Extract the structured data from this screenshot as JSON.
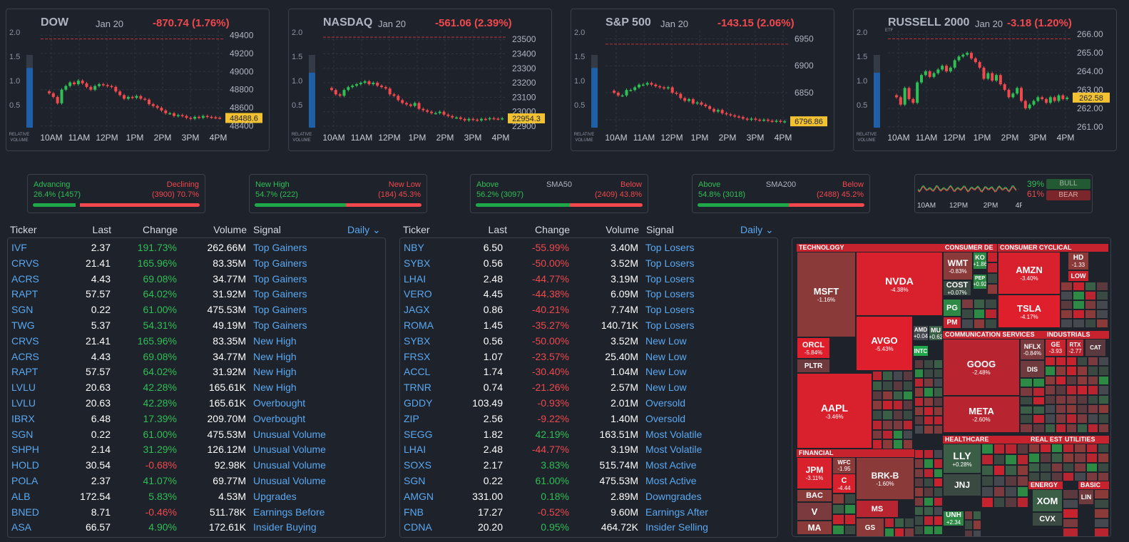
{
  "indices": [
    {
      "name": "DOW",
      "date": "Jan 20",
      "change": "-870.74 (1.76%)",
      "sub": "",
      "last": "48488.6",
      "yticks": [
        "49400",
        "49200",
        "49000",
        "48800",
        "48600",
        "48400"
      ],
      "vol_ticks": [
        "2.0",
        "1.5",
        "1.0",
        "0.5"
      ],
      "xticks": [
        "10AM",
        "11AM",
        "12PM",
        "1PM",
        "2PM",
        "3PM",
        "4PM"
      ],
      "vol_label": [
        "RELATIVE",
        "VOLUME"
      ],
      "rel_volume": 1.25,
      "ylim": [
        48350,
        49450
      ],
      "prev_close": 49359,
      "closes": [
        48760,
        48720,
        48650,
        48800,
        48840,
        48880,
        48860,
        48900,
        48870,
        48830,
        48800,
        48840,
        48860,
        48850,
        48840,
        48830,
        48780,
        48740,
        48700,
        48720,
        48710,
        48730,
        48700,
        48690,
        48640,
        48620,
        48600,
        48570,
        48540,
        48540,
        48510,
        48520,
        48510,
        48490,
        48480,
        48500,
        48490,
        48510,
        48500,
        48495,
        48490,
        48488
      ]
    },
    {
      "name": "NASDAQ",
      "date": "Jan 20",
      "change": "-561.06 (2.39%)",
      "sub": "",
      "last": "22954.3",
      "yticks": [
        "23500",
        "23400",
        "23300",
        "23200",
        "23100",
        "23000",
        "22900"
      ],
      "vol_ticks": [
        "2.0",
        "1.5",
        "1.0",
        "0.5"
      ],
      "xticks": [
        "10AM",
        "11AM",
        "12PM",
        "1PM",
        "2PM",
        "3PM",
        "4PM"
      ],
      "vol_label": [
        "RELATIVE",
        "VOLUME"
      ],
      "rel_volume": 1.15,
      "ylim": [
        22870,
        23560
      ],
      "prev_close": 23515,
      "closes": [
        23150,
        23120,
        23110,
        23150,
        23170,
        23180,
        23190,
        23200,
        23210,
        23190,
        23200,
        23180,
        23170,
        23160,
        23120,
        23110,
        23080,
        23060,
        23050,
        23040,
        23060,
        23020,
        23010,
        23000,
        22990,
        22990,
        23000,
        22980,
        22970,
        22960,
        22960,
        22950,
        22940,
        22950,
        22945,
        22940,
        22950,
        22948,
        22955,
        22952,
        22950,
        22954
      ]
    },
    {
      "name": "S&P 500",
      "date": "Jan 20",
      "change": "-143.15 (2.06%)",
      "sub": "",
      "last": "6796.86",
      "yticks": [
        "6950",
        "6900",
        "6850",
        "6800"
      ],
      "vol_ticks": [
        "2.0",
        "1.5",
        "1.0",
        "0.5"
      ],
      "xticks": [
        "10AM",
        "11AM",
        "12PM",
        "1PM",
        "2PM",
        "3PM",
        "4PM"
      ],
      "vol_label": [
        "RELATIVE",
        "VOLUME"
      ],
      "rel_volume": 1.25,
      "ylim": [
        6780,
        6965
      ],
      "prev_close": 6940,
      "closes": [
        6850,
        6845,
        6845,
        6855,
        6855,
        6860,
        6865,
        6865,
        6868,
        6865,
        6862,
        6860,
        6858,
        6860,
        6850,
        6848,
        6840,
        6835,
        6838,
        6830,
        6832,
        6828,
        6825,
        6820,
        6815,
        6818,
        6812,
        6810,
        6808,
        6806,
        6805,
        6802,
        6800,
        6802,
        6800,
        6799,
        6800,
        6798,
        6797,
        6798,
        6796,
        6797
      ]
    },
    {
      "name": "RUSSELL 2000",
      "date": "Jan 20",
      "change": "-3.18 (1.20%)",
      "sub": "ETF",
      "last": "262.58",
      "yticks": [
        "266.00",
        "265.00",
        "264.00",
        "263.00",
        "262.00",
        "261.00"
      ],
      "vol_ticks": [
        "2.0",
        "1.5",
        "1.0",
        "0.5"
      ],
      "xticks": [
        "10AM",
        "11AM",
        "12PM",
        "1PM",
        "2PM",
        "3PM",
        "4PM"
      ],
      "vol_label": [
        "RELATIVE",
        "VOLUME"
      ],
      "rel_volume": 1.15,
      "ylim": [
        260.8,
        266.2
      ],
      "prev_close": 265.76,
      "closes": [
        262.6,
        262.2,
        263.1,
        262.5,
        262.3,
        263.4,
        263.8,
        264.0,
        263.7,
        263.9,
        264.1,
        264.3,
        264.0,
        264.2,
        264.6,
        264.8,
        264.9,
        265.0,
        264.7,
        264.5,
        264.2,
        263.6,
        263.9,
        263.5,
        263.8,
        263.3,
        263.0,
        262.6,
        262.8,
        263.1,
        262.4,
        262.0,
        262.2,
        262.4,
        262.6,
        262.5,
        262.3,
        262.6,
        262.4,
        262.7,
        262.5,
        262.58
      ]
    }
  ],
  "breadth": [
    {
      "left_title": "Advancing",
      "center_title": "",
      "right_title": "Declining",
      "left_value": "26.4% (1457)",
      "right_value": "(3900) 70.7%",
      "left_fraction": 0.264
    },
    {
      "left_title": "New High",
      "center_title": "",
      "right_title": "New Low",
      "left_value": "54.7% (222)",
      "right_value": "(184) 45.3%",
      "left_fraction": 0.547
    },
    {
      "left_title": "Above",
      "center_title": "SMA50",
      "right_title": "Below",
      "left_value": "56.2% (3097)",
      "right_value": "(2409) 43.8%",
      "left_fraction": 0.562
    },
    {
      "left_title": "Above",
      "center_title": "SMA200",
      "right_title": "Below",
      "left_value": "54.8% (3018)",
      "right_value": "(2488) 45.2%",
      "left_fraction": 0.548
    }
  ],
  "sentiment": {
    "bull_pct": "39%",
    "bear_pct": "61%",
    "bull_label": "BULL",
    "bear_label": "BEAR",
    "xticks": [
      "10AM",
      "12PM",
      "2PM",
      "4PM"
    ]
  },
  "table_headers": {
    "ticker": "Ticker",
    "last": "Last",
    "change": "Change",
    "volume": "Volume",
    "signal": "Signal",
    "period": "Daily ⌄"
  },
  "left_table": [
    [
      "IVF",
      "2.37",
      "191.73%",
      "262.66M",
      "Top Gainers"
    ],
    [
      "CRVS",
      "21.41",
      "165.96%",
      "83.35M",
      "Top Gainers"
    ],
    [
      "ACRS",
      "4.43",
      "69.08%",
      "34.77M",
      "Top Gainers"
    ],
    [
      "RAPT",
      "57.57",
      "64.02%",
      "31.92M",
      "Top Gainers"
    ],
    [
      "SGN",
      "0.22",
      "61.00%",
      "475.53M",
      "Top Gainers"
    ],
    [
      "TWG",
      "5.37",
      "54.31%",
      "49.19M",
      "Top Gainers"
    ],
    [
      "CRVS",
      "21.41",
      "165.96%",
      "83.35M",
      "New High"
    ],
    [
      "ACRS",
      "4.43",
      "69.08%",
      "34.77M",
      "New High"
    ],
    [
      "RAPT",
      "57.57",
      "64.02%",
      "31.92M",
      "New High"
    ],
    [
      "LVLU",
      "20.63",
      "42.28%",
      "165.61K",
      "New High"
    ],
    [
      "LVLU",
      "20.63",
      "42.28%",
      "165.61K",
      "Overbought"
    ],
    [
      "IBRX",
      "6.48",
      "17.39%",
      "209.70M",
      "Overbought"
    ],
    [
      "SGN",
      "0.22",
      "61.00%",
      "475.53M",
      "Unusual Volume"
    ],
    [
      "SHPH",
      "2.14",
      "31.29%",
      "126.12M",
      "Unusual Volume"
    ],
    [
      "HOLD",
      "30.54",
      "-0.68%",
      "92.98K",
      "Unusual Volume"
    ],
    [
      "POLA",
      "2.37",
      "41.07%",
      "69.77M",
      "Unusual Volume"
    ],
    [
      "ALB",
      "172.54",
      "5.83%",
      "4.53M",
      "Upgrades"
    ],
    [
      "BNED",
      "8.71",
      "-0.46%",
      "511.78K",
      "Earnings Before"
    ],
    [
      "ASA",
      "66.57",
      "4.90%",
      "172.61K",
      "Insider Buying"
    ]
  ],
  "right_table": [
    [
      "NBY",
      "6.50",
      "-55.99%",
      "3.40M",
      "Top Losers"
    ],
    [
      "SYBX",
      "0.56",
      "-50.00%",
      "3.52M",
      "Top Losers"
    ],
    [
      "LHAI",
      "2.48",
      "-44.77%",
      "3.19M",
      "Top Losers"
    ],
    [
      "VERO",
      "4.45",
      "-44.38%",
      "6.09M",
      "Top Losers"
    ],
    [
      "JAGX",
      "0.86",
      "-40.21%",
      "7.74M",
      "Top Losers"
    ],
    [
      "ROMA",
      "1.45",
      "-35.27%",
      "140.71K",
      "Top Losers"
    ],
    [
      "SYBX",
      "0.56",
      "-50.00%",
      "3.52M",
      "New Low"
    ],
    [
      "FRSX",
      "1.07",
      "-23.57%",
      "25.40M",
      "New Low"
    ],
    [
      "ACCL",
      "1.74",
      "-30.40%",
      "1.04M",
      "New Low"
    ],
    [
      "TRNR",
      "0.74",
      "-21.26%",
      "2.57M",
      "New Low"
    ],
    [
      "GDDY",
      "103.49",
      "-0.93%",
      "2.01M",
      "Oversold"
    ],
    [
      "ZIP",
      "2.56",
      "-9.22%",
      "1.40M",
      "Oversold"
    ],
    [
      "SEGG",
      "1.82",
      "42.19%",
      "163.51M",
      "Most Volatile"
    ],
    [
      "LHAI",
      "2.48",
      "-44.77%",
      "3.19M",
      "Most Volatile"
    ],
    [
      "SOXS",
      "2.17",
      "3.83%",
      "515.74M",
      "Most Active"
    ],
    [
      "SGN",
      "0.22",
      "61.00%",
      "475.53M",
      "Most Active"
    ],
    [
      "AMGN",
      "331.00",
      "0.18%",
      "2.89M",
      "Downgrades"
    ],
    [
      "FNB",
      "17.27",
      "-0.52%",
      "9.60M",
      "Earnings After"
    ],
    [
      "CDNA",
      "20.20",
      "0.95%",
      "464.72K",
      "Insider Selling"
    ]
  ],
  "heatmap": {
    "sectors": [
      "TECHNOLOGY",
      "CONSUMER DE",
      "CONSUMER CYCLICAL",
      "COMMUNICATION SERVICES",
      "INDUSTRIALS",
      "FINANCIAL",
      "HEALTHCARE",
      "REAL EST",
      "UTILITIES",
      "ENERGY",
      "BASIC"
    ],
    "tiles": [
      {
        "t": "MSFT",
        "p": "-1.16%",
        "c": "#8b3a3a"
      },
      {
        "t": "NVDA",
        "p": "-4.38%",
        "c": "#d9202d"
      },
      {
        "t": "AVGO",
        "p": "-5.43%",
        "c": "#e01f2c"
      },
      {
        "t": "ORCL",
        "p": "-5.84%",
        "c": "#e01f2c"
      },
      {
        "t": "PLTR",
        "p": "",
        "c": "#6e3a3e"
      },
      {
        "t": "AAPL",
        "p": "-3.46%",
        "c": "#d9202d"
      },
      {
        "t": "AMD",
        "p": "+0.04",
        "c": "#45494f"
      },
      {
        "t": "MU",
        "p": "+0.62",
        "c": "#3a5f46"
      },
      {
        "t": "INTC",
        "p": "",
        "c": "#1ea84a"
      },
      {
        "t": "WMT",
        "p": "-0.83%",
        "c": "#8b3a3a"
      },
      {
        "t": "KO",
        "p": "+1.86",
        "c": "#2d8a45"
      },
      {
        "t": "COST",
        "p": "+0.07%",
        "c": "#3a4a42"
      },
      {
        "t": "PG",
        "p": "",
        "c": "#2d8a45"
      },
      {
        "t": "PM",
        "p": "",
        "c": "#c7232f"
      },
      {
        "t": "PEP",
        "p": "+0.92",
        "c": "#2d8a45"
      },
      {
        "t": "AMZN",
        "p": "-3.40%",
        "c": "#d9202d"
      },
      {
        "t": "TSLA",
        "p": "-4.17%",
        "c": "#e01f2c"
      },
      {
        "t": "HD",
        "p": "-1.33",
        "c": "#8b3a3a"
      },
      {
        "t": "LOW",
        "p": "",
        "c": "#c7232f"
      },
      {
        "t": "GOOG",
        "p": "-2.48%",
        "c": "#b8242f"
      },
      {
        "t": "META",
        "p": "-2.60%",
        "c": "#b8242f"
      },
      {
        "t": "NFLX",
        "p": "-0.84%",
        "c": "#7a3a3e"
      },
      {
        "t": "DIS",
        "p": "",
        "c": "#6e3a3e"
      },
      {
        "t": "GE",
        "p": "-3.93",
        "c": "#c7232f"
      },
      {
        "t": "RTX",
        "p": "-2.77",
        "c": "#b8242f"
      },
      {
        "t": "CAT",
        "p": "",
        "c": "#5a3a3e"
      },
      {
        "t": "JPM",
        "p": "-3.11%",
        "c": "#d9202d"
      },
      {
        "t": "BAC",
        "p": "",
        "c": "#8b3a3a"
      },
      {
        "t": "V",
        "p": "",
        "c": "#7a3a3e"
      },
      {
        "t": "MA",
        "p": "",
        "c": "#8b3a3a"
      },
      {
        "t": "BRK-B",
        "p": "-1.60%",
        "c": "#8b3a3a"
      },
      {
        "t": "MS",
        "p": "",
        "c": "#b8242f"
      },
      {
        "t": "GS",
        "p": "",
        "c": "#8b3a3a"
      },
      {
        "t": "C",
        "p": "-4.44",
        "c": "#d9202d"
      },
      {
        "t": "WFC",
        "p": "-1.95",
        "c": "#8b3a3a"
      },
      {
        "t": "LLY",
        "p": "+0.28%",
        "c": "#3a5f46"
      },
      {
        "t": "JNJ",
        "p": "",
        "c": "#3a4a42"
      },
      {
        "t": "UNH",
        "p": "+2.34",
        "c": "#2d8a45"
      },
      {
        "t": "XOM",
        "p": "",
        "c": "#3a5f46"
      },
      {
        "t": "CVX",
        "p": "",
        "c": "#3a4a42"
      },
      {
        "t": "LIN",
        "p": "",
        "c": "#6e3a3e"
      }
    ]
  }
}
